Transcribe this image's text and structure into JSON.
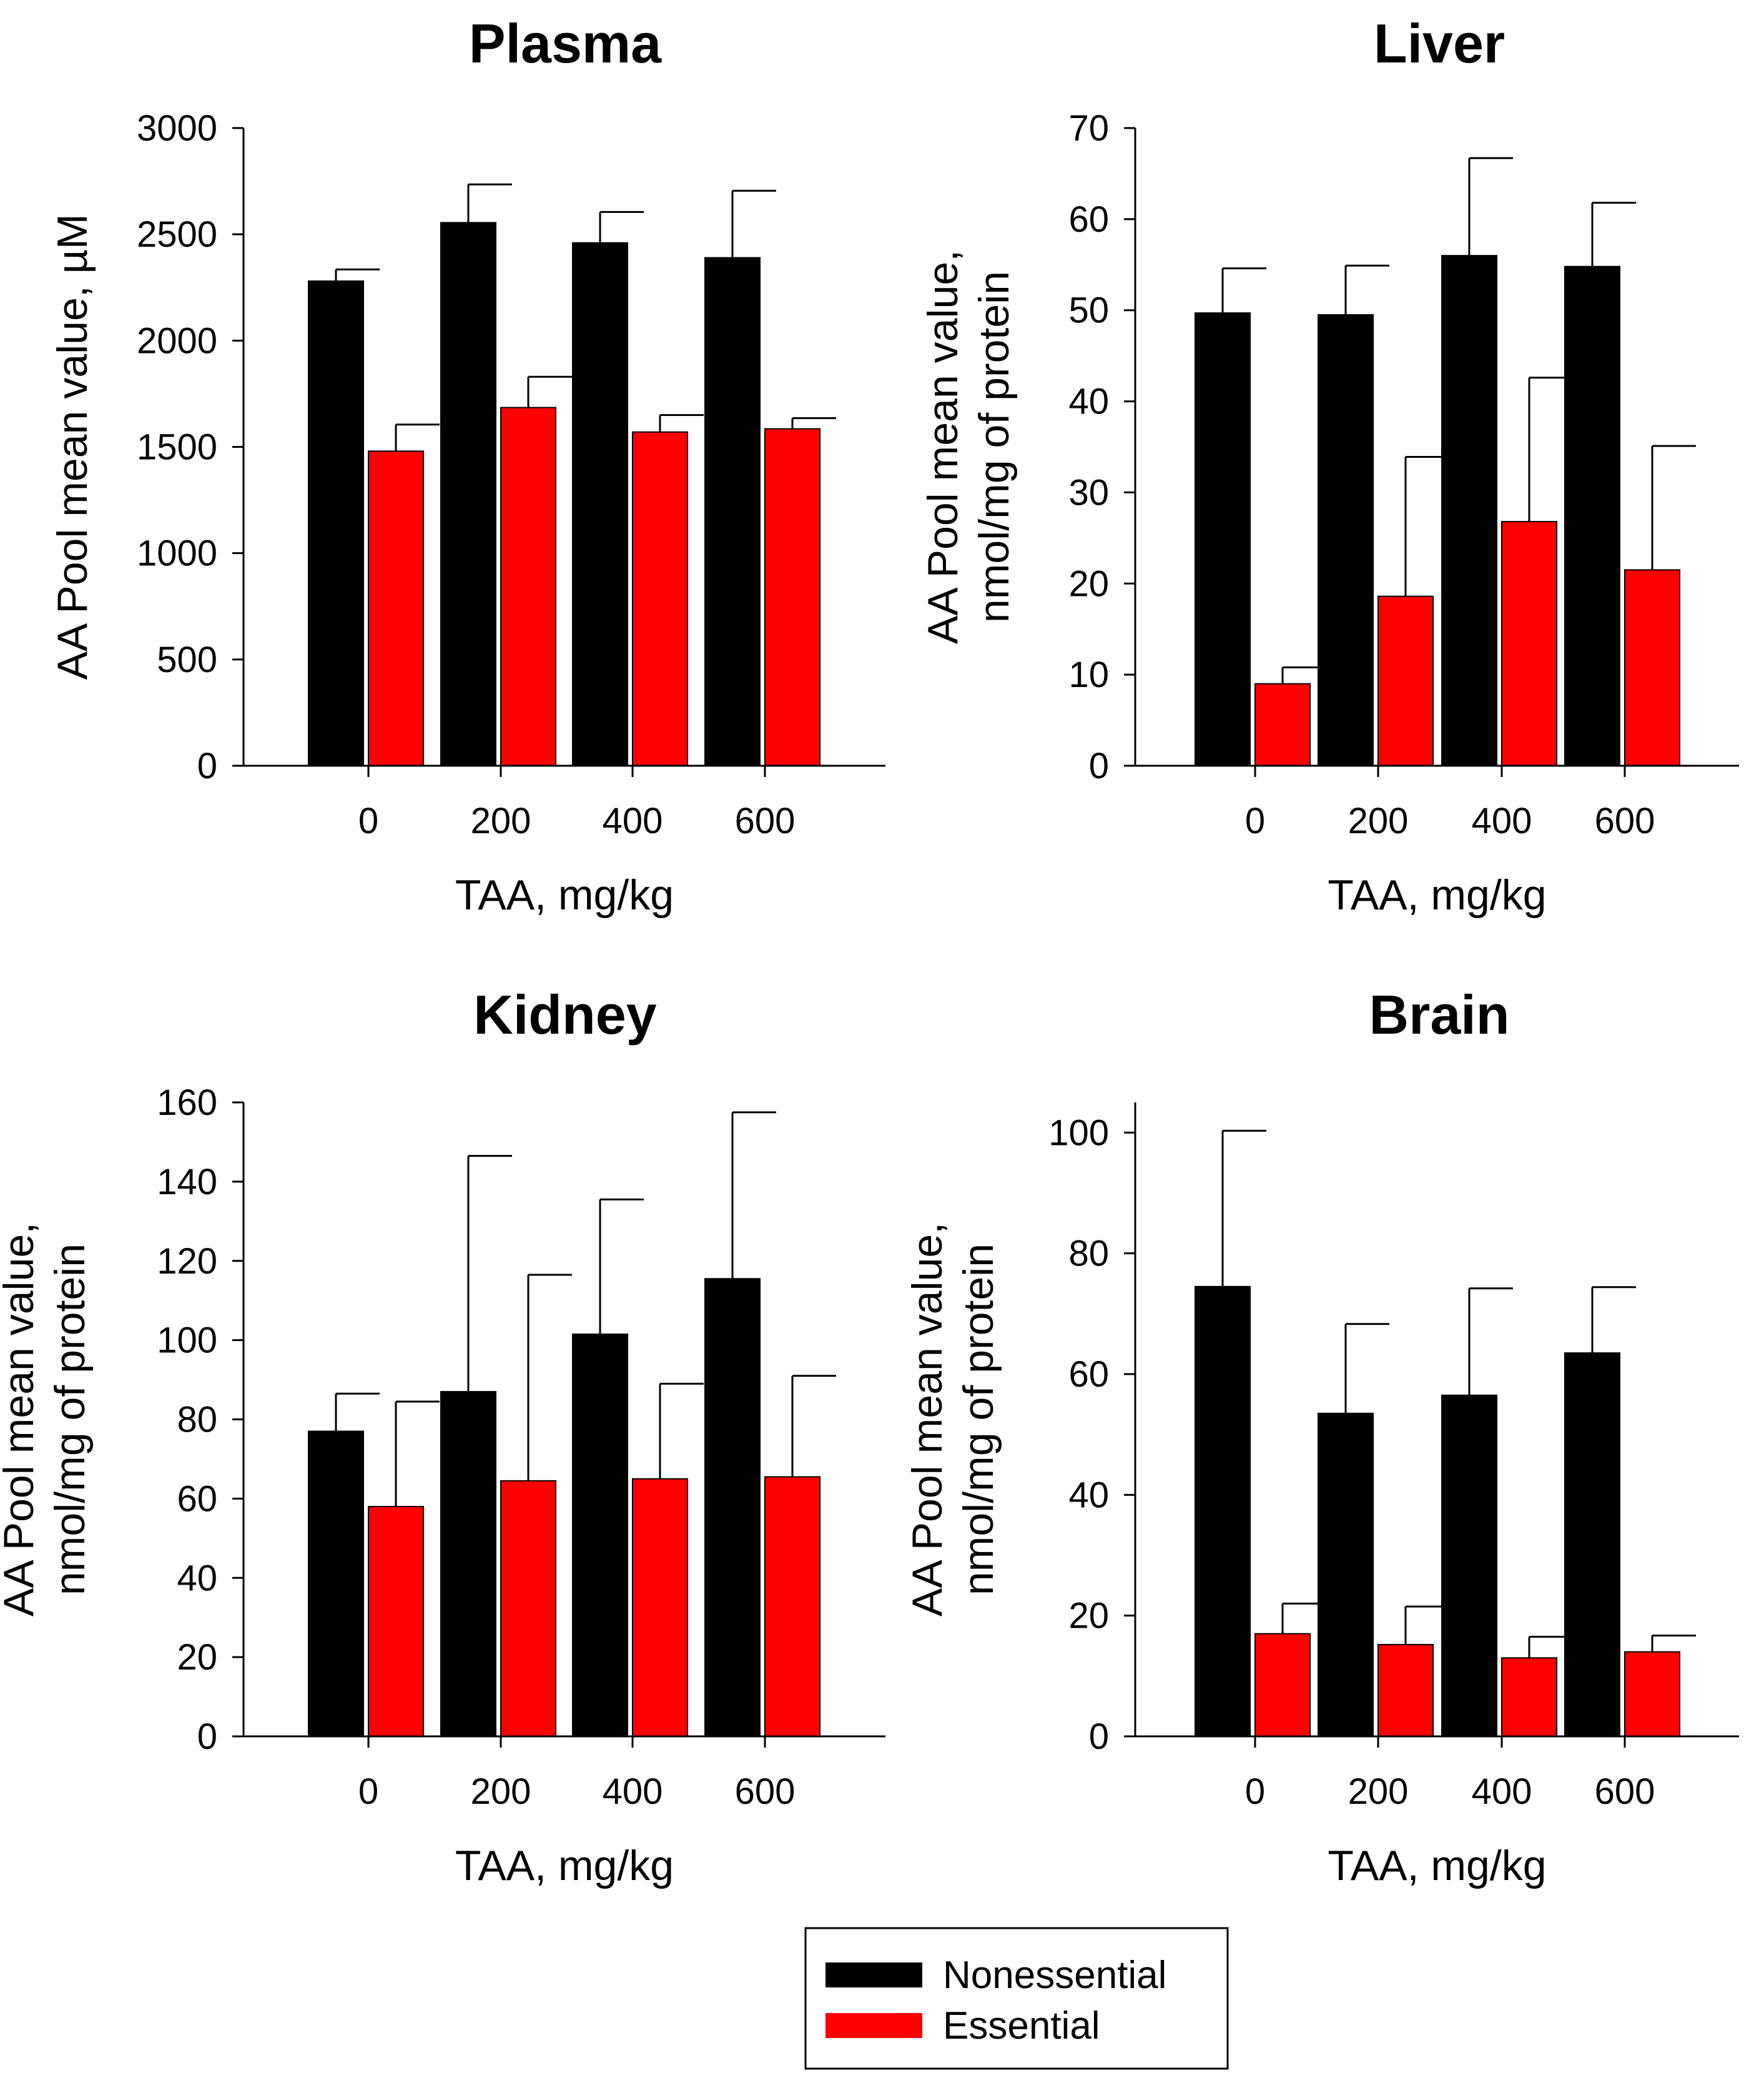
{
  "colors": {
    "nonessential": "#000000",
    "essential": "#ff0000",
    "axis": "#000000",
    "background": "#ffffff"
  },
  "legend": {
    "items": [
      {
        "label": "Nonessential",
        "color": "#000000"
      },
      {
        "label": "Essential",
        "color": "#ff0000"
      }
    ]
  },
  "chart_data": [
    {
      "type": "bar",
      "title": "Plasma",
      "xlabel": "TAA, mg/kg",
      "ylabel": [
        "AA Pool mean value, µM"
      ],
      "categories": [
        "0",
        "200",
        "400",
        "600"
      ],
      "ylim": [
        0,
        3000
      ],
      "yticks": [
        0,
        500,
        1000,
        1500,
        2000,
        2500,
        3000
      ],
      "series": [
        {
          "name": "Nonessential",
          "values": [
            2280,
            2555,
            2460,
            2390
          ],
          "errors": [
            55,
            180,
            145,
            315
          ]
        },
        {
          "name": "Essential",
          "values": [
            1480,
            1685,
            1570,
            1585
          ],
          "errors": [
            125,
            145,
            80,
            50
          ]
        }
      ]
    },
    {
      "type": "bar",
      "title": "Liver",
      "xlabel": "TAA, mg/kg",
      "ylabel": [
        "AA Pool mean value,",
        "nmol/mg of protein"
      ],
      "categories": [
        "0",
        "200",
        "400",
        "600"
      ],
      "ylim": [
        0,
        70
      ],
      "yticks": [
        0,
        10,
        20,
        30,
        40,
        50,
        60,
        70
      ],
      "series": [
        {
          "name": "Nonessential",
          "values": [
            49.7,
            49.5,
            56.0,
            54.8
          ],
          "errors": [
            4.9,
            5.4,
            10.7,
            7.0
          ]
        },
        {
          "name": "Essential",
          "values": [
            9.0,
            18.6,
            26.8,
            21.5
          ],
          "errors": [
            1.8,
            15.3,
            15.8,
            13.6
          ]
        }
      ]
    },
    {
      "type": "bar",
      "title": "Kidney",
      "xlabel": "TAA, mg/kg",
      "ylabel": [
        "AA Pool mean value,",
        "nmol/mg of protein"
      ],
      "categories": [
        "0",
        "200",
        "400",
        "600"
      ],
      "ylim": [
        0,
        160
      ],
      "yticks": [
        0,
        20,
        40,
        60,
        80,
        100,
        120,
        140,
        160
      ],
      "series": [
        {
          "name": "Nonessential",
          "values": [
            77,
            87,
            101.5,
            115.5
          ],
          "errors": [
            9.5,
            59.5,
            34,
            42
          ]
        },
        {
          "name": "Essential",
          "values": [
            58,
            64.5,
            65,
            65.5
          ],
          "errors": [
            26.5,
            52,
            24,
            25.5
          ]
        }
      ]
    },
    {
      "type": "bar",
      "title": "Brain",
      "xlabel": "TAA, mg/kg",
      "ylabel": [
        "AA Pool mean value,",
        "nmol/mg of protein"
      ],
      "categories": [
        "0",
        "200",
        "400",
        "600"
      ],
      "ylim": [
        0,
        105
      ],
      "yticks": [
        0,
        20,
        40,
        60,
        80,
        100
      ],
      "series": [
        {
          "name": "Nonessential",
          "values": [
            74.5,
            53.5,
            56.5,
            63.5
          ],
          "errors": [
            25.8,
            14.8,
            17.7,
            10.9
          ]
        },
        {
          "name": "Essential",
          "values": [
            17.0,
            15.2,
            13.0,
            14.0
          ],
          "errors": [
            5.0,
            6.3,
            3.5,
            2.7
          ]
        }
      ]
    }
  ]
}
